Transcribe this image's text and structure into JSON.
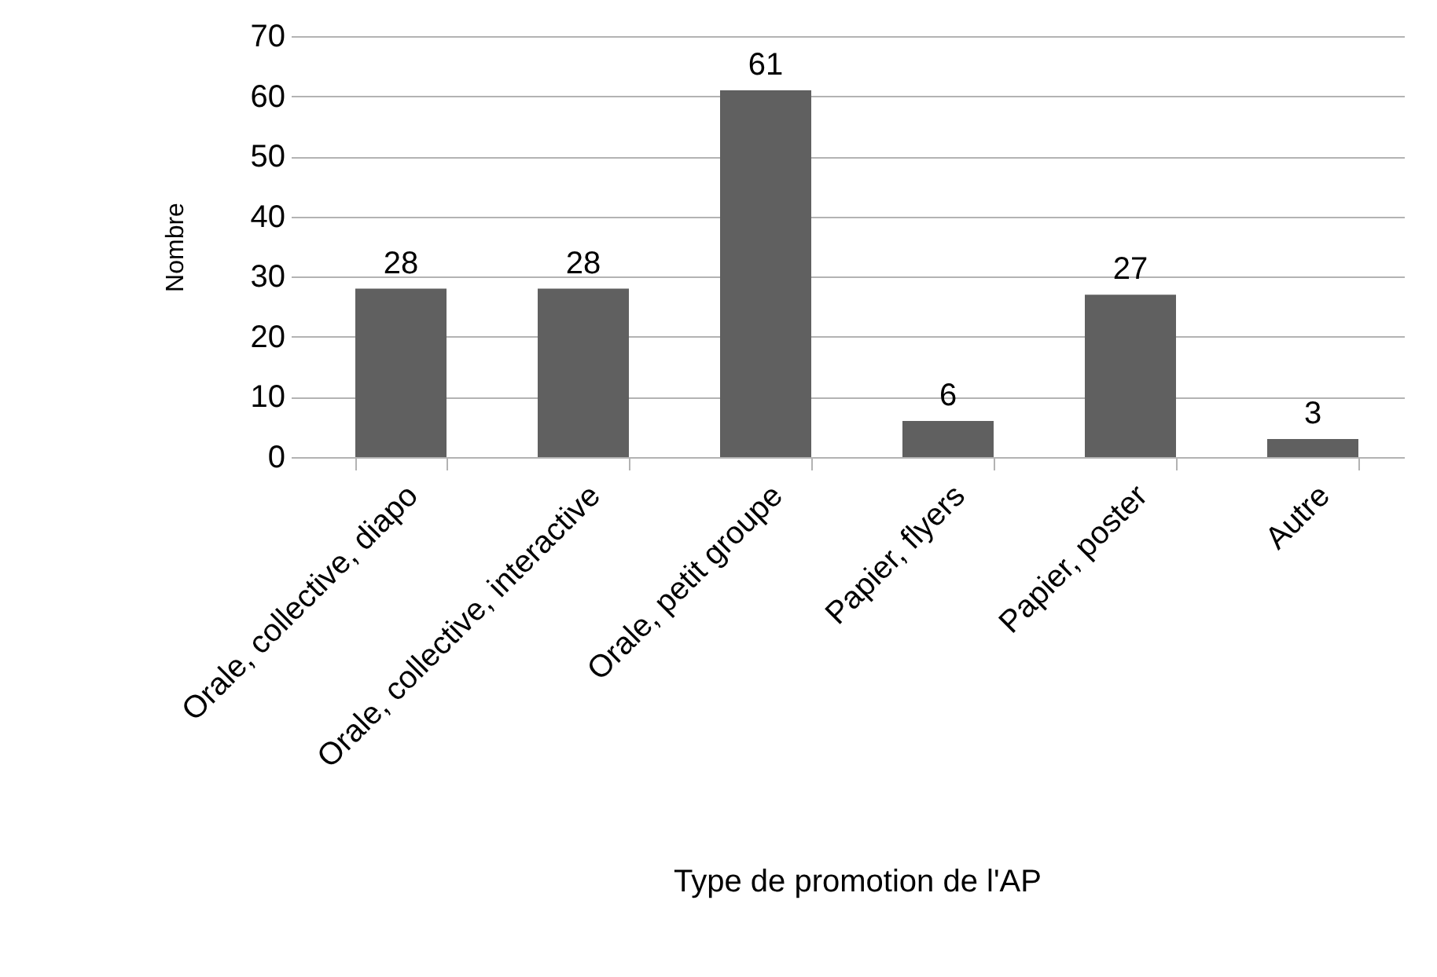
{
  "chart_data": {
    "type": "bar",
    "xlabel": "Type de promotion de l'AP",
    "ylabel": "Nombre",
    "categories": [
      "Orale, collective, diapo",
      "Orale, collective, interactive",
      "Orale, petit groupe",
      "Papier, flyers",
      "Papier, poster",
      "Autre"
    ],
    "values": [
      28,
      28,
      61,
      6,
      27,
      3
    ],
    "color": "#606060",
    "ylim": [
      0,
      70
    ],
    "yticks": [
      0,
      10,
      20,
      30,
      40,
      50,
      60,
      70
    ],
    "grid": "y",
    "data_labels": true
  }
}
